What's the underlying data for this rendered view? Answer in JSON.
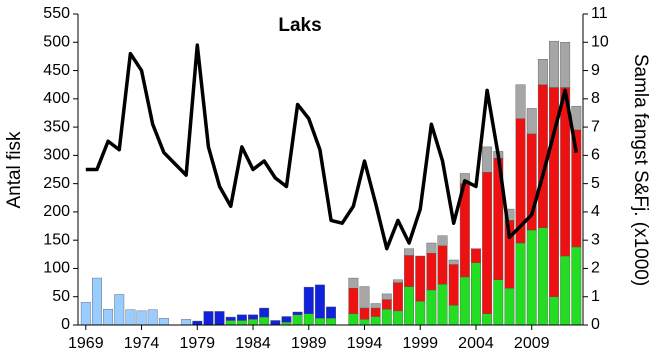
{
  "chart_data": {
    "type": "bar",
    "title": "Laks",
    "y_label": "Antal fisk",
    "y2_label": "Samla fangst S&Fj. (x1000)",
    "x": [
      1969,
      1970,
      1971,
      1972,
      1973,
      1974,
      1975,
      1976,
      1977,
      1978,
      1979,
      1980,
      1981,
      1982,
      1983,
      1984,
      1985,
      1986,
      1987,
      1988,
      1989,
      1990,
      1991,
      1992,
      1993,
      1994,
      1995,
      1996,
      1997,
      1998,
      1999,
      2000,
      2001,
      2002,
      2003,
      2004,
      2005,
      2006,
      2007,
      2008,
      2009,
      2010,
      2011,
      2012,
      2013
    ],
    "xlim": [
      1968.3,
      2013.6
    ],
    "xticks": [
      1969,
      1974,
      1979,
      1984,
      1989,
      1994,
      1999,
      2004,
      2009
    ],
    "ylim": [
      0,
      550
    ],
    "yticks": [
      0,
      50,
      100,
      150,
      200,
      250,
      300,
      350,
      400,
      450,
      500,
      550
    ],
    "y2lim": [
      0,
      11
    ],
    "y2ticks": [
      0,
      1,
      2,
      3,
      4,
      5,
      6,
      7,
      8,
      9,
      10,
      11
    ],
    "series": [
      {
        "color": "#22dd22",
        "values": [
          0,
          0,
          0,
          0,
          0,
          0,
          0,
          0,
          0,
          0,
          0,
          0,
          0,
          8,
          8,
          10,
          14,
          0,
          5,
          18,
          20,
          12,
          12,
          0,
          20,
          10,
          15,
          28,
          25,
          68,
          42,
          62,
          72,
          35,
          85,
          110,
          20,
          80,
          65,
          145,
          168,
          172,
          50,
          122,
          138
        ]
      },
      {
        "color": "#ee1111",
        "values": [
          0,
          0,
          0,
          0,
          0,
          0,
          0,
          0,
          0,
          0,
          0,
          0,
          0,
          0,
          0,
          0,
          0,
          0,
          0,
          0,
          0,
          0,
          0,
          0,
          45,
          20,
          15,
          17,
          50,
          55,
          80,
          65,
          68,
          72,
          165,
          25,
          250,
          215,
          120,
          220,
          170,
          253,
          370,
          298,
          207
        ]
      },
      {
        "color": "#a6a6a6",
        "values": [
          0,
          0,
          0,
          0,
          0,
          0,
          0,
          0,
          0,
          0,
          0,
          0,
          0,
          0,
          0,
          0,
          0,
          0,
          0,
          0,
          0,
          0,
          0,
          0,
          18,
          38,
          8,
          10,
          5,
          12,
          0,
          18,
          18,
          8,
          18,
          0,
          45,
          12,
          20,
          60,
          45,
          45,
          82,
          80,
          42
        ]
      },
      {
        "color": "#99ccff",
        "values": [
          40,
          83,
          28,
          54,
          27,
          25,
          27,
          12,
          0,
          10,
          0,
          0,
          0,
          0,
          0,
          0,
          0,
          0,
          0,
          0,
          0,
          0,
          0,
          0,
          0,
          0,
          0,
          0,
          0,
          0,
          0,
          0,
          0,
          0,
          0,
          0,
          0,
          0,
          0,
          0,
          0,
          0,
          0,
          0,
          0
        ]
      },
      {
        "color": "#1122dd",
        "values": [
          0,
          0,
          0,
          0,
          0,
          0,
          0,
          0,
          0,
          0,
          7,
          24,
          24,
          6,
          10,
          8,
          16,
          8,
          10,
          5,
          47,
          59,
          20,
          0,
          0,
          0,
          0,
          0,
          0,
          0,
          0,
          0,
          0,
          0,
          0,
          0,
          0,
          0,
          0,
          0,
          0,
          0,
          0,
          0,
          0
        ]
      },
      {
        "type": "line",
        "axis": "y2",
        "color": "#000000",
        "values": [
          5.5,
          5.5,
          6.5,
          6.2,
          9.6,
          9.0,
          7.1,
          6.1,
          5.7,
          5.3,
          9.9,
          6.3,
          4.9,
          4.2,
          6.3,
          5.5,
          5.8,
          5.2,
          4.9,
          7.8,
          7.3,
          6.2,
          3.7,
          3.6,
          4.2,
          5.8,
          4.3,
          2.7,
          3.7,
          2.9,
          4.1,
          7.1,
          5.8,
          3.6,
          5.1,
          4.9,
          8.3,
          6.0,
          3.1,
          3.5,
          3.9,
          5.3,
          6.8,
          8.3,
          6.1
        ]
      }
    ]
  }
}
